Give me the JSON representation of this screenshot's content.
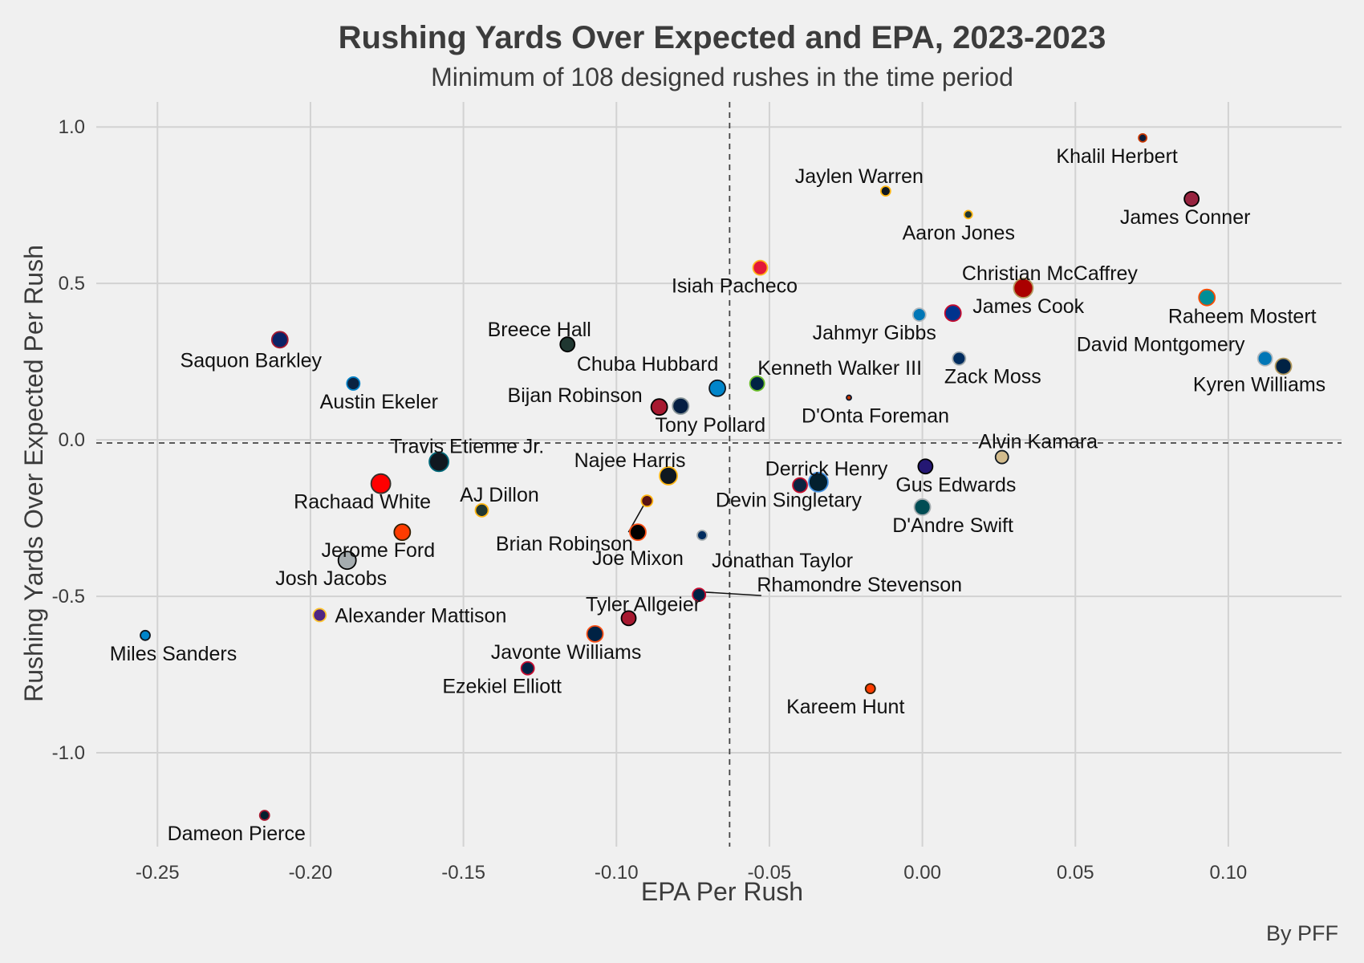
{
  "chart_data": {
    "type": "scatter",
    "title": "Rushing Yards Over Expected and EPA, 2023-2023",
    "subtitle": "Minimum of 108 designed rushes in the time period",
    "xlabel": "EPA Per Rush",
    "ylabel": "Rushing Yards Over Expected Per Rush",
    "caption": "By PFF",
    "xlim": [
      -0.27,
      0.137
    ],
    "ylim": [
      -1.3,
      1.08
    ],
    "x_ticks": [
      -0.25,
      -0.2,
      -0.15,
      -0.1,
      -0.05,
      0.0,
      0.05,
      0.1
    ],
    "x_tick_labels": [
      "-0.25",
      "-0.20",
      "-0.15",
      "-0.10",
      "-0.05",
      "0.00",
      "0.05",
      "0.10"
    ],
    "y_ticks": [
      -1.0,
      -0.5,
      0.0,
      0.5,
      1.0
    ],
    "y_tick_labels": [
      "-1.0",
      "-0.5",
      "0.0",
      "0.5",
      "1.0"
    ],
    "grid": true,
    "reference_lines": {
      "x_mean": -0.063,
      "y_mean": -0.01
    },
    "points": [
      {
        "name": "Khalil Herbert",
        "x": 0.072,
        "y": 0.965,
        "size": 5,
        "fill": "#0b1c3a",
        "edge": "#c83803",
        "label_dx": -32,
        "label_dy": 22
      },
      {
        "name": "James Conner",
        "x": 0.088,
        "y": 0.77,
        "size": 9,
        "fill": "#97233f",
        "edge": "#000000",
        "label_dx": -8,
        "label_dy": 22
      },
      {
        "name": "Jaylen Warren",
        "x": -0.012,
        "y": 0.795,
        "size": 6,
        "fill": "#101820",
        "edge": "#ffb612",
        "label_dx": -33,
        "label_dy": -19
      },
      {
        "name": "Aaron Jones",
        "x": 0.015,
        "y": 0.72,
        "size": 5,
        "fill": "#203731",
        "edge": "#ffb612",
        "label_dx": -12,
        "label_dy": 22
      },
      {
        "name": "Isiah Pacheco",
        "x": -0.053,
        "y": 0.55,
        "size": 9,
        "fill": "#e31837",
        "edge": "#ffb81c",
        "label_dx": -32,
        "label_dy": 22
      },
      {
        "name": "Christian McCaffrey",
        "x": 0.033,
        "y": 0.485,
        "size": 12,
        "fill": "#aa0000",
        "edge": "#b3995d",
        "label_dx": 33,
        "label_dy": -19
      },
      {
        "name": "Raheem Mostert",
        "x": 0.093,
        "y": 0.455,
        "size": 10,
        "fill": "#008e97",
        "edge": "#fc4c02",
        "label_dx": 44,
        "label_dy": 23
      },
      {
        "name": "Jahmyr Gibbs",
        "x": -0.001,
        "y": 0.4,
        "size": 8,
        "fill": "#0076b6",
        "edge": "#b0b7bc",
        "label_dx": -56,
        "label_dy": 22
      },
      {
        "name": "James Cook",
        "x": 0.01,
        "y": 0.405,
        "size": 10,
        "fill": "#00338d",
        "edge": "#c60c30",
        "label_dx": 94,
        "label_dy": -9
      },
      {
        "name": "Saquon Barkley",
        "x": -0.21,
        "y": 0.32,
        "size": 10,
        "fill": "#0b2265",
        "edge": "#a71930",
        "label_dx": -36,
        "label_dy": 25
      },
      {
        "name": "Breece Hall",
        "x": -0.116,
        "y": 0.305,
        "size": 9,
        "fill": "#203731",
        "edge": "#000000",
        "label_dx": -35,
        "label_dy": -19
      },
      {
        "name": "David Montgomery",
        "x": 0.112,
        "y": 0.26,
        "size": 9,
        "fill": "#0076b6",
        "edge": "#b0b7bc",
        "label_dx": -130,
        "label_dy": -18
      },
      {
        "name": "Zack Moss",
        "x": 0.012,
        "y": 0.26,
        "size": 8,
        "fill": "#002c5f",
        "edge": "#a2aaad",
        "label_dx": 42,
        "label_dy": 22
      },
      {
        "name": "Kyren Williams",
        "x": 0.118,
        "y": 0.235,
        "size": 10,
        "fill": "#002244",
        "edge": "#b3995d",
        "label_dx": -30,
        "label_dy": 22
      },
      {
        "name": "Austin Ekeler",
        "x": -0.186,
        "y": 0.18,
        "size": 8,
        "fill": "#0a2342",
        "edge": "#0080c6",
        "label_dx": 32,
        "label_dy": 22
      },
      {
        "name": "Chuba Hubbard",
        "x": -0.067,
        "y": 0.165,
        "size": 10,
        "fill": "#0085ca",
        "edge": "#101820",
        "label_dx": -87,
        "label_dy": -31
      },
      {
        "name": "Kenneth Walker III",
        "x": -0.054,
        "y": 0.18,
        "size": 9,
        "fill": "#002244",
        "edge": "#69be28",
        "label_dx": 103,
        "label_dy": -20
      },
      {
        "name": "D'Onta Foreman",
        "x": -0.024,
        "y": 0.135,
        "size": 3,
        "fill": "#c83803",
        "edge": "#0b162a",
        "label_dx": 33,
        "label_dy": 22
      },
      {
        "name": "Bijan Robinson",
        "x": -0.086,
        "y": 0.105,
        "size": 10,
        "fill": "#a71930",
        "edge": "#000000",
        "label_dx": -105,
        "label_dy": -15
      },
      {
        "name": "Tony Pollard",
        "x": -0.079,
        "y": 0.108,
        "size": 10,
        "fill": "#041e42",
        "edge": "#869397",
        "label_dx": 37,
        "label_dy": 23
      },
      {
        "name": "Alvin Kamara",
        "x": 0.026,
        "y": -0.055,
        "size": 8,
        "fill": "#d3bc8d",
        "edge": "#101820",
        "label_dx": 45,
        "label_dy": -20
      },
      {
        "name": "Travis Etienne Jr.",
        "x": -0.158,
        "y": -0.07,
        "size": 12,
        "fill": "#101820",
        "edge": "#006778",
        "label_dx": 35,
        "label_dy": -20
      },
      {
        "name": "Gus Edwards",
        "x": 0.001,
        "y": -0.085,
        "size": 9,
        "fill": "#241773",
        "edge": "#000000",
        "label_dx": 38,
        "label_dy": 22
      },
      {
        "name": "Najee Harris",
        "x": -0.083,
        "y": -0.115,
        "size": 11,
        "fill": "#101820",
        "edge": "#ffb612",
        "label_dx": -48,
        "label_dy": -20
      },
      {
        "name": "Derrick Henry",
        "x": -0.04,
        "y": -0.145,
        "size": 9,
        "fill": "#0c2340",
        "edge": "#c8102e",
        "label_dx": 33,
        "label_dy": -21
      },
      {
        "name": "Devin Singletary",
        "x": -0.034,
        "y": -0.135,
        "size": 12,
        "fill": "#03202f",
        "edge": "#418fde",
        "label_dx": -37,
        "label_dy": 22
      },
      {
        "name": "Rachaad White",
        "x": -0.177,
        "y": -0.14,
        "size": 12,
        "fill": "#ff0000",
        "edge": "#34302b",
        "label_dx": -23,
        "label_dy": 22
      },
      {
        "name": "AJ Dillon",
        "x": -0.144,
        "y": -0.225,
        "size": 8,
        "fill": "#203731",
        "edge": "#ffb612",
        "label_dx": 22,
        "label_dy": -20
      },
      {
        "name": "D'Andre Swift",
        "x": 0.0,
        "y": -0.215,
        "size": 10,
        "fill": "#004c54",
        "edge": "#a5acaf",
        "label_dx": 38,
        "label_dy": 22
      },
      {
        "name": "Brian Robinson",
        "x": -0.09,
        "y": -0.195,
        "size": 7,
        "fill": "#5a1414",
        "edge": "#ffb612",
        "label_dx": -103,
        "label_dy": 53,
        "leader": true
      },
      {
        "name": "Jerome Ford",
        "x": -0.17,
        "y": -0.295,
        "size": 10,
        "fill": "#ff3c00",
        "edge": "#311d00",
        "label_dx": -30,
        "label_dy": 22
      },
      {
        "name": "Joe Mixon",
        "x": -0.093,
        "y": -0.295,
        "size": 10,
        "fill": "#000000",
        "edge": "#fb4f14",
        "label_dx": 0,
        "label_dy": 32
      },
      {
        "name": "Jonathan Taylor",
        "x": -0.072,
        "y": -0.305,
        "size": 6,
        "fill": "#002c5f",
        "edge": "#a2aaad",
        "label_dx": 100,
        "label_dy": 31
      },
      {
        "name": "Josh Jacobs",
        "x": -0.188,
        "y": -0.385,
        "size": 11,
        "fill": "#a5acaf",
        "edge": "#000000",
        "label_dx": -20,
        "label_dy": 22
      },
      {
        "name": "Rhamondre Stevenson",
        "x": -0.073,
        "y": -0.495,
        "size": 8,
        "fill": "#002244",
        "edge": "#c60c30",
        "label_dx": 200,
        "label_dy": -13,
        "leader": true
      },
      {
        "name": "Alexander Mattison",
        "x": -0.197,
        "y": -0.56,
        "size": 8,
        "fill": "#4f2683",
        "edge": "#ffc62f",
        "label_dx": 126,
        "label_dy": 0
      },
      {
        "name": "Tyler Allgeier",
        "x": -0.096,
        "y": -0.57,
        "size": 9,
        "fill": "#a71930",
        "edge": "#000000",
        "label_dx": 18,
        "label_dy": -18
      },
      {
        "name": "Javonte Williams",
        "x": -0.107,
        "y": -0.62,
        "size": 10,
        "fill": "#002244",
        "edge": "#fb4f14",
        "label_dx": -36,
        "label_dy": 22
      },
      {
        "name": "Miles Sanders",
        "x": -0.254,
        "y": -0.625,
        "size": 6,
        "fill": "#0085ca",
        "edge": "#101820",
        "label_dx": 35,
        "label_dy": 22
      },
      {
        "name": "Ezekiel Elliott",
        "x": -0.129,
        "y": -0.73,
        "size": 8,
        "fill": "#002244",
        "edge": "#c60c30",
        "label_dx": -32,
        "label_dy": 22
      },
      {
        "name": "Kareem Hunt",
        "x": -0.017,
        "y": -0.795,
        "size": 6,
        "fill": "#ff3c00",
        "edge": "#311d00",
        "label_dx": -31,
        "label_dy": 22
      },
      {
        "name": "Dameon Pierce",
        "x": -0.215,
        "y": -1.2,
        "size": 6,
        "fill": "#03202f",
        "edge": "#a71930",
        "label_dx": -35,
        "label_dy": 22
      }
    ]
  }
}
